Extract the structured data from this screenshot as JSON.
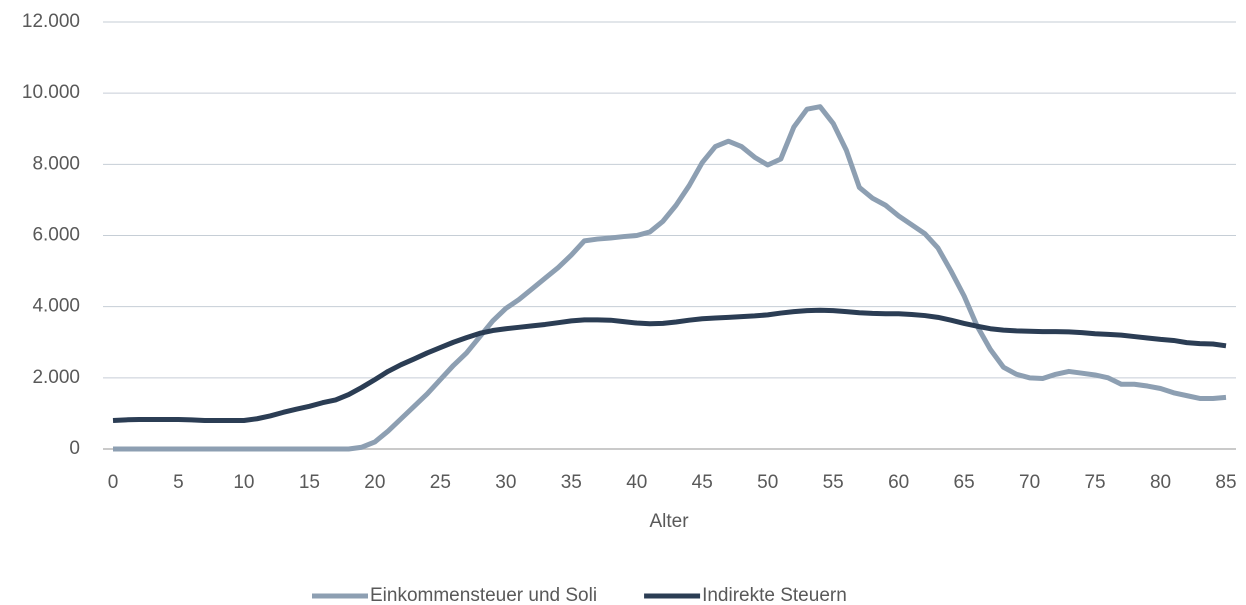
{
  "chart_data": {
    "type": "line",
    "x_label": "Alter",
    "x": [
      0,
      1,
      2,
      3,
      4,
      5,
      6,
      7,
      8,
      9,
      10,
      11,
      12,
      13,
      14,
      15,
      16,
      17,
      18,
      19,
      20,
      21,
      22,
      23,
      24,
      25,
      26,
      27,
      28,
      29,
      30,
      31,
      32,
      33,
      34,
      35,
      36,
      37,
      38,
      39,
      40,
      41,
      42,
      43,
      44,
      45,
      46,
      47,
      48,
      49,
      50,
      51,
      52,
      53,
      54,
      55,
      56,
      57,
      58,
      59,
      60,
      61,
      62,
      63,
      64,
      65,
      66,
      67,
      68,
      69,
      70,
      71,
      72,
      73,
      74,
      75,
      76,
      77,
      78,
      79,
      80,
      81,
      82,
      83,
      84,
      85
    ],
    "series": [
      {
        "name": "Einkommensteuer und Soli",
        "color": "#8d9fb2",
        "values": [
          0,
          0,
          0,
          0,
          0,
          0,
          0,
          0,
          0,
          0,
          0,
          0,
          0,
          0,
          0,
          0,
          0,
          0,
          0,
          50,
          200,
          500,
          850,
          1200,
          1550,
          1950,
          2350,
          2700,
          3150,
          3600,
          3950,
          4200,
          4500,
          4800,
          5100,
          5450,
          5850,
          5900,
          5930,
          5970,
          6000,
          6100,
          6400,
          6850,
          7400,
          8050,
          8500,
          8650,
          8500,
          8200,
          7980,
          8150,
          9050,
          9550,
          9620,
          9150,
          8400,
          7350,
          7050,
          6850,
          6550,
          6300,
          6050,
          5650,
          5000,
          4300,
          3450,
          2800,
          2300,
          2100,
          2000,
          1980,
          2100,
          2180,
          2130,
          2080,
          2000,
          1820,
          1820,
          1770,
          1700,
          1580,
          1500,
          1420,
          1420,
          1450
        ]
      },
      {
        "name": "Indirekte Steuern",
        "color": "#2b3d54",
        "values": [
          800,
          820,
          830,
          830,
          830,
          830,
          820,
          800,
          800,
          800,
          800,
          850,
          930,
          1030,
          1120,
          1200,
          1300,
          1380,
          1530,
          1730,
          1950,
          2180,
          2370,
          2530,
          2700,
          2850,
          3000,
          3130,
          3250,
          3330,
          3380,
          3420,
          3460,
          3500,
          3550,
          3600,
          3630,
          3630,
          3620,
          3580,
          3540,
          3520,
          3530,
          3570,
          3620,
          3660,
          3680,
          3700,
          3720,
          3740,
          3770,
          3820,
          3860,
          3890,
          3900,
          3890,
          3860,
          3830,
          3810,
          3800,
          3800,
          3780,
          3750,
          3700,
          3620,
          3530,
          3450,
          3380,
          3340,
          3320,
          3310,
          3300,
          3300,
          3290,
          3270,
          3240,
          3220,
          3200,
          3160,
          3120,
          3080,
          3050,
          2990,
          2960,
          2950,
          2900
        ]
      }
    ],
    "xlim": [
      0,
      85
    ],
    "xticks": [
      0,
      5,
      10,
      15,
      20,
      25,
      30,
      35,
      40,
      45,
      50,
      55,
      60,
      65,
      70,
      75,
      80,
      85
    ],
    "ylim": [
      0,
      12000
    ],
    "yticks": [
      {
        "value": 0,
        "label": "0"
      },
      {
        "value": 2000,
        "label": "2.000"
      },
      {
        "value": 4000,
        "label": "4.000"
      },
      {
        "value": 6000,
        "label": "6.000"
      },
      {
        "value": 8000,
        "label": "8.000"
      },
      {
        "value": 10000,
        "label": "10.000"
      },
      {
        "value": 12000,
        "label": "12.000"
      }
    ],
    "grid": true,
    "legend": "bottom"
  }
}
